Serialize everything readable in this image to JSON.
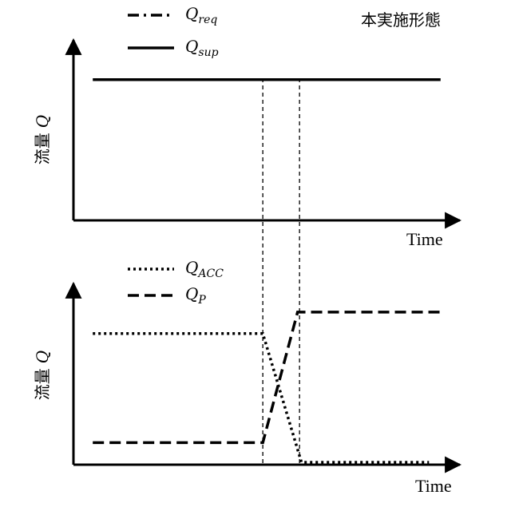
{
  "embodiment_label": "本実施形態",
  "chart_data": [
    {
      "type": "line",
      "xlabel": "Time",
      "ylabel_text": "流量",
      "ylabel_symbol": "Q",
      "legend": [
        {
          "symbol": "Q",
          "subscript": "req",
          "style": "dashdot"
        },
        {
          "symbol": "Q",
          "subscript": "sup",
          "style": "solid"
        }
      ],
      "series": [
        {
          "name": "Q_req",
          "style": "dashdot",
          "points": []
        },
        {
          "name": "Q_sup",
          "style": "solid",
          "points": [
            [
              0.05,
              0.78
            ],
            [
              0.95,
              0.78
            ]
          ]
        }
      ],
      "xlim": [
        0,
        1
      ],
      "ylim": [
        0,
        1
      ]
    },
    {
      "type": "line",
      "xlabel": "Time",
      "ylabel_text": "流量",
      "ylabel_symbol": "Q",
      "legend": [
        {
          "symbol": "Q",
          "subscript": "ACC",
          "style": "dotted"
        },
        {
          "symbol": "Q",
          "subscript": "P",
          "style": "dashed"
        }
      ],
      "series": [
        {
          "name": "Q_ACC",
          "style": "dotted",
          "points": [
            [
              0.05,
              0.72
            ],
            [
              0.49,
              0.72
            ],
            [
              0.59,
              0.0
            ],
            [
              0.92,
              0.0
            ]
          ]
        },
        {
          "name": "Q_P",
          "style": "dashed",
          "points": [
            [
              0.05,
              0.11
            ],
            [
              0.49,
              0.11
            ],
            [
              0.58,
              0.84
            ],
            [
              0.95,
              0.84
            ]
          ]
        }
      ],
      "xlim": [
        0,
        1
      ],
      "ylim": [
        0,
        1
      ]
    }
  ],
  "event_markers_x": [
    0.49,
    0.585
  ]
}
